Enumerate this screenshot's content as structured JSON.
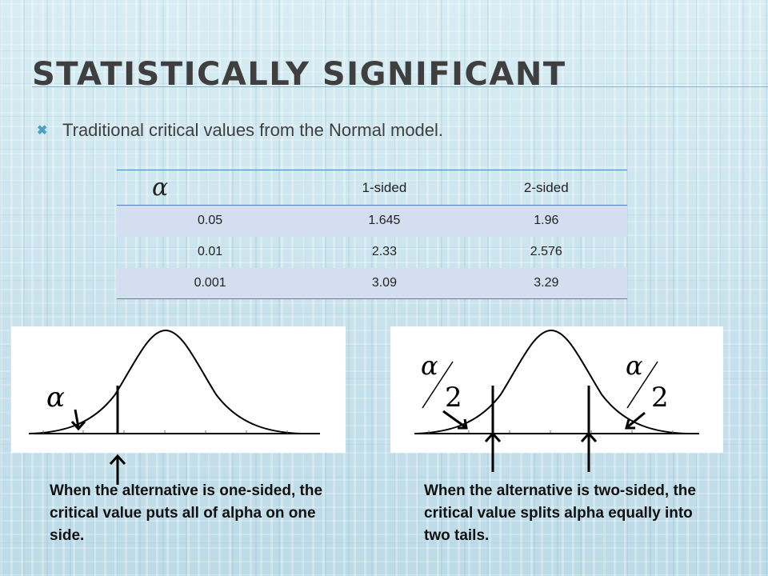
{
  "slide": {
    "title": "STATISTICALLY SIGNIFICANT",
    "bullet": "Traditional critical values from the Normal model."
  },
  "table": {
    "headers": [
      "α",
      "1-sided",
      "2-sided"
    ],
    "rows": [
      [
        "0.05",
        "1.645",
        "1.96"
      ],
      [
        "0.01",
        "2.33",
        "2.576"
      ],
      [
        "0.001",
        "3.09",
        "3.29"
      ]
    ]
  },
  "one_sided": {
    "alpha_symbol": "α",
    "caption": "When the alternative is one-sided, the critical value puts all of alpha on one side."
  },
  "two_sided": {
    "alpha_symbol": "α",
    "denominator": "2",
    "caption": "When the alternative is two-sided, the critical value splits alpha equally into two tails."
  },
  "colors": {
    "accent": "#4aa0c4",
    "table_border": "#4f81bd",
    "row_band": "#d3dff0",
    "title_text": "#3f3f3f"
  },
  "icons": {
    "bullet": "x-bullet-icon"
  }
}
